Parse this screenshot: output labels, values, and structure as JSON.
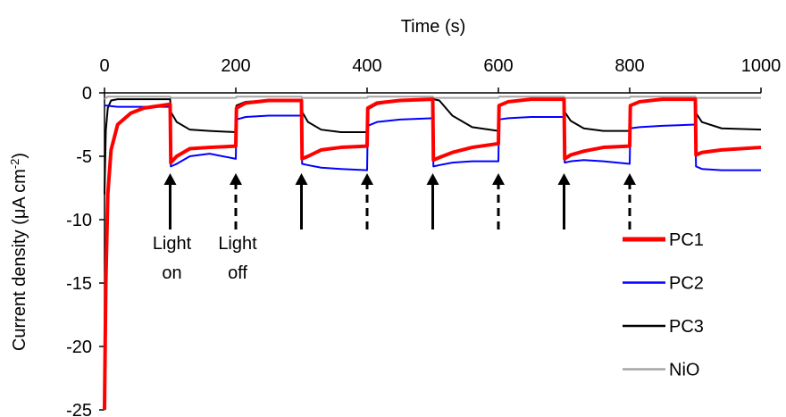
{
  "chart_data": {
    "type": "line",
    "title": "Time (s)",
    "y_label": {
      "text": "Current density (μA cm",
      "sup": "-2",
      "end": ")"
    },
    "x": [
      0,
      2,
      5,
      10,
      20,
      40,
      60,
      100,
      101,
      110,
      130,
      160,
      200,
      201,
      215,
      250,
      300,
      301,
      310,
      330,
      360,
      400,
      401,
      415,
      450,
      500,
      501,
      510,
      530,
      560,
      600,
      601,
      615,
      650,
      700,
      701,
      710,
      730,
      760,
      800,
      801,
      815,
      850,
      900,
      901,
      910,
      940,
      1000
    ],
    "series": [
      {
        "name": "PC1",
        "color": "#ff0000",
        "values": [
          -25,
          -15,
          -8,
          -4.5,
          -2.5,
          -1.6,
          -1.2,
          -0.9,
          -5.5,
          -5.0,
          -4.4,
          -4.3,
          -4.2,
          -1.2,
          -0.8,
          -0.6,
          -0.6,
          -5.2,
          -5.0,
          -4.5,
          -4.3,
          -4.2,
          -1.2,
          -0.8,
          -0.6,
          -0.5,
          -5.3,
          -5.1,
          -4.7,
          -4.3,
          -4.0,
          -1.0,
          -0.7,
          -0.5,
          -0.5,
          -5.2,
          -4.9,
          -4.6,
          -4.3,
          -4.2,
          -1.0,
          -0.7,
          -0.5,
          -0.5,
          -4.9,
          -4.7,
          -4.5,
          -4.3
        ]
      },
      {
        "name": "PC2",
        "color": "#0000ff",
        "values": [
          -1,
          -1,
          -1,
          -1.05,
          -1.1,
          -1.1,
          -1.1,
          -1.1,
          -5.8,
          -5.6,
          -5.0,
          -4.8,
          -5.2,
          -2.1,
          -1.9,
          -1.8,
          -1.8,
          -5.6,
          -5.7,
          -5.9,
          -6.0,
          -6.1,
          -2.6,
          -2.3,
          -2.1,
          -2.0,
          -5.8,
          -5.7,
          -5.5,
          -5.4,
          -5.4,
          -2.1,
          -2.0,
          -1.9,
          -1.9,
          -5.5,
          -5.4,
          -5.3,
          -5.4,
          -5.6,
          -2.8,
          -2.7,
          -2.6,
          -2.5,
          -5.8,
          -6.0,
          -6.1,
          -6.1
        ]
      },
      {
        "name": "PC3",
        "color": "#000000",
        "values": [
          -8,
          -3,
          -1.2,
          -0.6,
          -0.5,
          -0.5,
          -0.5,
          -0.5,
          -1.5,
          -2.3,
          -2.9,
          -3.0,
          -3.1,
          -1.0,
          -0.7,
          -0.6,
          -0.6,
          -1.5,
          -2.3,
          -2.9,
          -3.1,
          -3.1,
          -1.3,
          -0.9,
          -0.6,
          -0.5,
          -0.5,
          -0.6,
          -1.8,
          -2.7,
          -3.0,
          -1.0,
          -0.7,
          -0.5,
          -0.5,
          -1.5,
          -2.2,
          -2.8,
          -3.0,
          -3.0,
          -1.0,
          -0.7,
          -0.5,
          -0.5,
          -1.6,
          -2.3,
          -2.8,
          -2.9
        ]
      },
      {
        "name": "NiO",
        "color": "#a6a6a6",
        "values": [
          -0.5,
          -0.4,
          -0.3,
          -0.3,
          -0.3,
          -0.3,
          -0.3,
          -0.3,
          -0.4,
          -0.4,
          -0.4,
          -0.4,
          -0.4,
          -0.3,
          -0.3,
          -0.3,
          -0.3,
          -0.4,
          -0.4,
          -0.4,
          -0.4,
          -0.4,
          -0.3,
          -0.3,
          -0.3,
          -0.3,
          -0.4,
          -0.4,
          -0.4,
          -0.4,
          -0.4,
          -0.3,
          -0.3,
          -0.3,
          -0.3,
          -0.4,
          -0.4,
          -0.4,
          -0.4,
          -0.4,
          -0.3,
          -0.3,
          -0.3,
          -0.3,
          -0.4,
          -0.4,
          -0.4,
          -0.4
        ]
      }
    ],
    "xlim": [
      0,
      1000
    ],
    "xticks": [
      0,
      200,
      400,
      600,
      800,
      1000
    ],
    "ylim": [
      -25,
      0
    ],
    "yticks": [
      0,
      -5,
      -10,
      -15,
      -20,
      -25
    ],
    "x_axis_position": "top",
    "legend": "lower right",
    "light_on": [
      100,
      300,
      500,
      700
    ],
    "light_off": [
      200,
      400,
      600,
      800
    ],
    "annotations": [
      [
        "Light",
        "on"
      ],
      [
        "Light",
        "off"
      ]
    ]
  }
}
